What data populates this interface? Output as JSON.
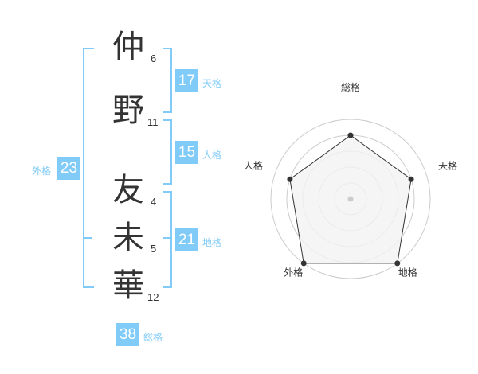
{
  "name": {
    "chars": [
      {
        "char": "仲",
        "strokes": "6"
      },
      {
        "char": "野",
        "strokes": "11"
      },
      {
        "char": "友",
        "strokes": "4"
      },
      {
        "char": "未",
        "strokes": "5"
      },
      {
        "char": "華",
        "strokes": "12"
      }
    ]
  },
  "kaku": {
    "tenkaku": {
      "value": "17",
      "label": "天格"
    },
    "jinkaku": {
      "value": "15",
      "label": "人格"
    },
    "chikaku": {
      "value": "21",
      "label": "地格"
    },
    "gaikaku": {
      "value": "23",
      "label": "外格"
    },
    "soukaku": {
      "value": "38",
      "label": "総格"
    }
  },
  "colors": {
    "accent": "#80cbf8",
    "text": "#333333",
    "fill": "#f2f2f2",
    "grid": "#cccccc"
  },
  "chart_data": {
    "type": "radar",
    "categories": [
      "総格",
      "天格",
      "地格",
      "外格",
      "人格"
    ],
    "values": [
      4,
      4,
      5,
      5,
      4
    ],
    "rlim": [
      0,
      5
    ],
    "grid": true
  }
}
